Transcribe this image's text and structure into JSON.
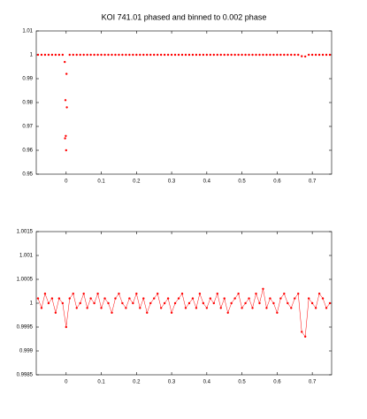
{
  "chart_data": [
    {
      "type": "scatter",
      "title": "KOI 741.01 phased and binned to 0.002 phase",
      "color": "#ff0000",
      "xlim": [
        -0.085,
        0.755
      ],
      "xticks": [
        0,
        0.1,
        0.2,
        0.3,
        0.4,
        0.5,
        0.6,
        0.7
      ],
      "ylim": [
        0.95,
        1.01
      ],
      "yticks": [
        0.95,
        0.96,
        0.97,
        0.98,
        0.99,
        1,
        1.01
      ],
      "x": [
        -0.08,
        -0.07,
        -0.06,
        -0.05,
        -0.04,
        -0.03,
        -0.02,
        -0.01,
        -0.004,
        -0.003,
        -0.002,
        -0.001,
        0,
        0.001,
        0.002,
        0.01,
        0.02,
        0.03,
        0.04,
        0.05,
        0.06,
        0.07,
        0.08,
        0.09,
        0.1,
        0.11,
        0.12,
        0.13,
        0.14,
        0.15,
        0.16,
        0.17,
        0.18,
        0.19,
        0.2,
        0.21,
        0.22,
        0.23,
        0.24,
        0.25,
        0.26,
        0.27,
        0.28,
        0.29,
        0.3,
        0.31,
        0.32,
        0.33,
        0.34,
        0.35,
        0.36,
        0.37,
        0.38,
        0.39,
        0.4,
        0.41,
        0.42,
        0.43,
        0.44,
        0.45,
        0.46,
        0.47,
        0.48,
        0.49,
        0.5,
        0.51,
        0.52,
        0.53,
        0.54,
        0.55,
        0.56,
        0.57,
        0.58,
        0.59,
        0.6,
        0.61,
        0.62,
        0.63,
        0.64,
        0.65,
        0.66,
        0.67,
        0.68,
        0.69,
        0.7,
        0.71,
        0.72,
        0.73,
        0.74,
        0.75
      ],
      "values": [
        1,
        1,
        1,
        1,
        1,
        1,
        1,
        1,
        0.997,
        0.965,
        0.981,
        0.966,
        0.96,
        0.992,
        0.978,
        1,
        1,
        1,
        1,
        1,
        1,
        1,
        1,
        1,
        1,
        1,
        1,
        1,
        1,
        1,
        1,
        1,
        1,
        1,
        1,
        1,
        1,
        1,
        1,
        1,
        1,
        1,
        1,
        1,
        1,
        1,
        1,
        1,
        1,
        1,
        1,
        1,
        1,
        1,
        1,
        1,
        1,
        1,
        1,
        1,
        1,
        1,
        1,
        1,
        1,
        1,
        1,
        1,
        1,
        1,
        1,
        1,
        1,
        1,
        1,
        1,
        1,
        1,
        1,
        1,
        1,
        0.9994,
        0.9993,
        1,
        1,
        1,
        1,
        1,
        1,
        1
      ]
    },
    {
      "type": "line",
      "color": "#ff0000",
      "xlim": [
        -0.085,
        0.755
      ],
      "xticks": [
        0,
        0.1,
        0.2,
        0.3,
        0.4,
        0.5,
        0.6,
        0.7
      ],
      "ylim": [
        0.9985,
        1.0015
      ],
      "yticks": [
        0.9985,
        0.999,
        0.9995,
        1,
        1.0005,
        1.001,
        1.0015
      ],
      "x": [
        -0.08,
        -0.07,
        -0.06,
        -0.05,
        -0.04,
        -0.03,
        -0.02,
        -0.01,
        0,
        0.01,
        0.02,
        0.03,
        0.04,
        0.05,
        0.06,
        0.07,
        0.08,
        0.09,
        0.1,
        0.11,
        0.12,
        0.13,
        0.14,
        0.15,
        0.16,
        0.17,
        0.18,
        0.19,
        0.2,
        0.21,
        0.22,
        0.23,
        0.24,
        0.25,
        0.26,
        0.27,
        0.28,
        0.29,
        0.3,
        0.31,
        0.32,
        0.33,
        0.34,
        0.35,
        0.36,
        0.37,
        0.38,
        0.39,
        0.4,
        0.41,
        0.42,
        0.43,
        0.44,
        0.45,
        0.46,
        0.47,
        0.48,
        0.49,
        0.5,
        0.51,
        0.52,
        0.53,
        0.54,
        0.55,
        0.56,
        0.57,
        0.58,
        0.59,
        0.6,
        0.61,
        0.62,
        0.63,
        0.64,
        0.65,
        0.66,
        0.67,
        0.68,
        0.69,
        0.7,
        0.71,
        0.72,
        0.73,
        0.74,
        0.75
      ],
      "values": [
        1.0001,
        0.9999,
        1.0002,
        1,
        1.0001,
        0.9998,
        1.0001,
        1,
        0.9995,
        1.0001,
        1.0002,
        0.9999,
        1,
        1.0002,
        0.9999,
        1.0001,
        1,
        1.0002,
        0.9999,
        1.0001,
        1,
        0.9998,
        1.0001,
        1.0002,
        1,
        0.9999,
        1.0001,
        1,
        1.0002,
        0.9999,
        1.0001,
        0.9998,
        1,
        1.0001,
        1.0002,
        0.9999,
        1,
        1.0001,
        0.9998,
        1,
        1.0001,
        1.0002,
        0.9999,
        1,
        1.0001,
        0.9999,
        1.0002,
        1,
        0.9999,
        1.0001,
        1,
        1.0002,
        0.9999,
        1.0001,
        0.9998,
        1,
        1.0001,
        1.0002,
        0.9999,
        1,
        1.0001,
        0.9999,
        1.0002,
        1,
        1.0003,
        0.9999,
        1.0001,
        1,
        0.9998,
        1.0001,
        1.0002,
        1,
        0.9999,
        1.0001,
        1.0002,
        0.9994,
        0.9993,
        1.0001,
        1,
        0.9999,
        1.0002,
        1.0001,
        0.9999,
        1
      ]
    }
  ]
}
